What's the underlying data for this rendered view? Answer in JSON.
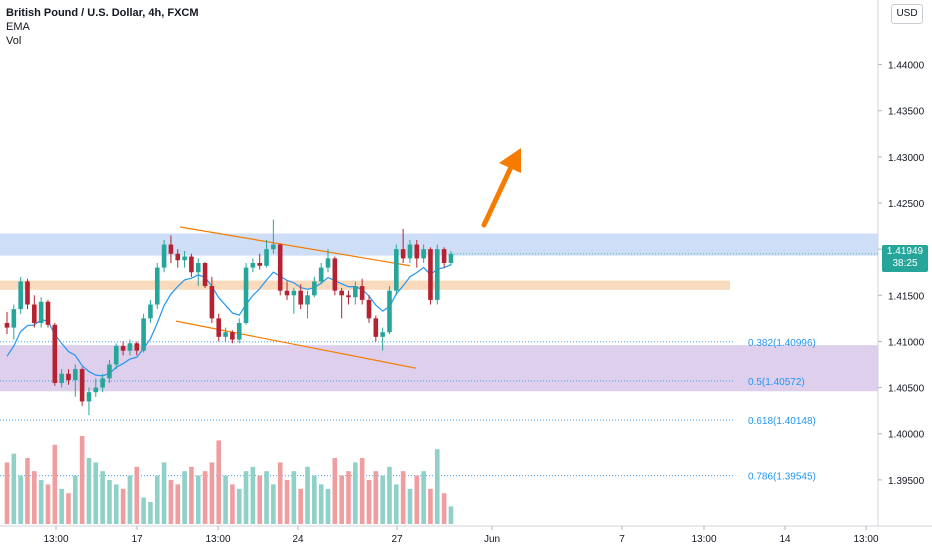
{
  "legend": {
    "title": "British Pound / U.S. Dollar, 4h, FXCM",
    "ema_label": "EMA",
    "vol_label": "Vol"
  },
  "currency_button": "USD",
  "last_price": {
    "value": "1.41949",
    "countdown": "38:25"
  },
  "colors": {
    "up": "#26a69a",
    "down": "#b52231",
    "vol_up": "#8fd0c8",
    "vol_down": "#f09da0",
    "ema": "#2196f3",
    "channel": "#f57c00",
    "arrow": "#f57c00",
    "resistance_zone": "#c5d8f5",
    "support_zone": "#f8d4b0",
    "fib_zone": "#d8c8ea",
    "fib_line": "#2196f3"
  },
  "chart_data": {
    "type": "candlestick",
    "symbol": "British Pound / U.S. Dollar",
    "interval": "4h",
    "source": "FXCM",
    "ylim": [
      1.39,
      1.447
    ],
    "y_ticks": [
      "1.44000",
      "1.43500",
      "1.43000",
      "1.42500",
      "1.42000",
      "1.41500",
      "1.41000",
      "1.40500",
      "1.40000",
      "1.39500"
    ],
    "x_ticks": [
      "13:00",
      "17",
      "13:00",
      "24",
      "27",
      "Jun",
      "7",
      "13:00",
      "14",
      "13:00"
    ],
    "fib_levels": [
      {
        "label": "0.382(1.40996)",
        "value": 1.40996
      },
      {
        "label": "0.5(1.40572)",
        "value": 1.40572
      },
      {
        "label": "0.618(1.40148)",
        "value": 1.40148
      },
      {
        "label": "0.786(1.39545)",
        "value": 1.39545
      }
    ],
    "zones": [
      {
        "name": "resistance",
        "from": 1.4193,
        "to": 1.4217
      },
      {
        "name": "support",
        "from": 1.4156,
        "to": 1.4166
      },
      {
        "name": "fibonacci",
        "from": 1.4046,
        "to": 1.4096
      }
    ],
    "last_price": 1.41949,
    "candles": [
      [
        1.412,
        1.4132,
        1.4108,
        1.4115
      ],
      [
        1.4115,
        1.414,
        1.4102,
        1.4135
      ],
      [
        1.4135,
        1.417,
        1.413,
        1.4165
      ],
      [
        1.4165,
        1.4168,
        1.4135,
        1.414
      ],
      [
        1.414,
        1.415,
        1.4115,
        1.412
      ],
      [
        1.412,
        1.4148,
        1.4115,
        1.4143
      ],
      [
        1.4143,
        1.4145,
        1.4115,
        1.4118
      ],
      [
        1.4118,
        1.412,
        1.4052,
        1.4055
      ],
      [
        1.4055,
        1.407,
        1.405,
        1.4065
      ],
      [
        1.4065,
        1.407,
        1.4053,
        1.4058
      ],
      [
        1.4058,
        1.4075,
        1.404,
        1.407
      ],
      [
        1.407,
        1.4072,
        1.403,
        1.4035
      ],
      [
        1.4035,
        1.405,
        1.402,
        1.4045
      ],
      [
        1.4045,
        1.406,
        1.404,
        1.405
      ],
      [
        1.405,
        1.4065,
        1.4045,
        1.406
      ],
      [
        1.406,
        1.408,
        1.4055,
        1.4075
      ],
      [
        1.4075,
        1.4098,
        1.407,
        1.4095
      ],
      [
        1.4095,
        1.41,
        1.4085,
        1.409
      ],
      [
        1.409,
        1.4102,
        1.4085,
        1.4098
      ],
      [
        1.4098,
        1.41,
        1.4085,
        1.409
      ],
      [
        1.409,
        1.413,
        1.4088,
        1.4125
      ],
      [
        1.4125,
        1.4145,
        1.412,
        1.414
      ],
      [
        1.414,
        1.4185,
        1.4135,
        1.418
      ],
      [
        1.418,
        1.421,
        1.4175,
        1.4205
      ],
      [
        1.4205,
        1.4215,
        1.4185,
        1.4195
      ],
      [
        1.4195,
        1.42,
        1.418,
        1.4188
      ],
      [
        1.4188,
        1.4198,
        1.418,
        1.4192
      ],
      [
        1.4192,
        1.4195,
        1.417,
        1.4175
      ],
      [
        1.4175,
        1.419,
        1.416,
        1.4185
      ],
      [
        1.4185,
        1.4186,
        1.4158,
        1.416
      ],
      [
        1.416,
        1.417,
        1.412,
        1.4125
      ],
      [
        1.4125,
        1.413,
        1.41,
        1.4105
      ],
      [
        1.4105,
        1.4115,
        1.41,
        1.411
      ],
      [
        1.411,
        1.4112,
        1.4098,
        1.4102
      ],
      [
        1.4102,
        1.4125,
        1.4098,
        1.412
      ],
      [
        1.412,
        1.4185,
        1.4118,
        1.418
      ],
      [
        1.418,
        1.419,
        1.4175,
        1.4185
      ],
      [
        1.4185,
        1.4195,
        1.4178,
        1.4182
      ],
      [
        1.4182,
        1.421,
        1.418,
        1.42
      ],
      [
        1.42,
        1.4232,
        1.4195,
        1.4205
      ],
      [
        1.4205,
        1.4206,
        1.415,
        1.4155
      ],
      [
        1.4155,
        1.4165,
        1.4145,
        1.415
      ],
      [
        1.415,
        1.4158,
        1.413,
        1.4155
      ],
      [
        1.4155,
        1.4162,
        1.4135,
        1.414
      ],
      [
        1.414,
        1.4155,
        1.4125,
        1.415
      ],
      [
        1.415,
        1.417,
        1.4148,
        1.4165
      ],
      [
        1.4165,
        1.4185,
        1.4162,
        1.418
      ],
      [
        1.418,
        1.42,
        1.4175,
        1.419
      ],
      [
        1.419,
        1.4192,
        1.415,
        1.4155
      ],
      [
        1.4155,
        1.4158,
        1.4125,
        1.415
      ],
      [
        1.415,
        1.4155,
        1.414,
        1.4148
      ],
      [
        1.4148,
        1.4165,
        1.414,
        1.416
      ],
      [
        1.416,
        1.4168,
        1.414,
        1.4145
      ],
      [
        1.4145,
        1.415,
        1.412,
        1.4125
      ],
      [
        1.4125,
        1.4128,
        1.41,
        1.4105
      ],
      [
        1.4105,
        1.4115,
        1.409,
        1.411
      ],
      [
        1.411,
        1.416,
        1.4108,
        1.4155
      ],
      [
        1.4155,
        1.4205,
        1.415,
        1.42
      ],
      [
        1.42,
        1.4222,
        1.4185,
        1.419
      ],
      [
        1.419,
        1.421,
        1.4185,
        1.4205
      ],
      [
        1.4205,
        1.421,
        1.418,
        1.419
      ],
      [
        1.419,
        1.4205,
        1.4185,
        1.42
      ],
      [
        1.42,
        1.4202,
        1.414,
        1.4145
      ],
      [
        1.4145,
        1.4205,
        1.414,
        1.42
      ],
      [
        1.42,
        1.4202,
        1.418,
        1.4185
      ],
      [
        1.4185,
        1.4198,
        1.4182,
        1.4195
      ]
    ],
    "volume": [
      0.7,
      0.8,
      0.55,
      0.75,
      0.6,
      0.5,
      0.45,
      0.9,
      0.4,
      0.35,
      0.55,
      1.0,
      0.75,
      0.7,
      0.6,
      0.5,
      0.45,
      0.4,
      0.55,
      0.65,
      0.3,
      0.25,
      0.55,
      0.7,
      0.5,
      0.45,
      0.6,
      0.65,
      0.55,
      0.6,
      0.7,
      0.95,
      0.55,
      0.45,
      0.4,
      0.6,
      0.65,
      0.55,
      0.6,
      0.45,
      0.7,
      0.5,
      0.6,
      0.4,
      0.65,
      0.55,
      0.45,
      0.4,
      0.75,
      0.55,
      0.6,
      0.7,
      0.75,
      0.5,
      0.6,
      0.55,
      0.65,
      0.45,
      0.6,
      0.4,
      0.55,
      0.6,
      0.4,
      0.85,
      0.35,
      0.2
    ]
  }
}
